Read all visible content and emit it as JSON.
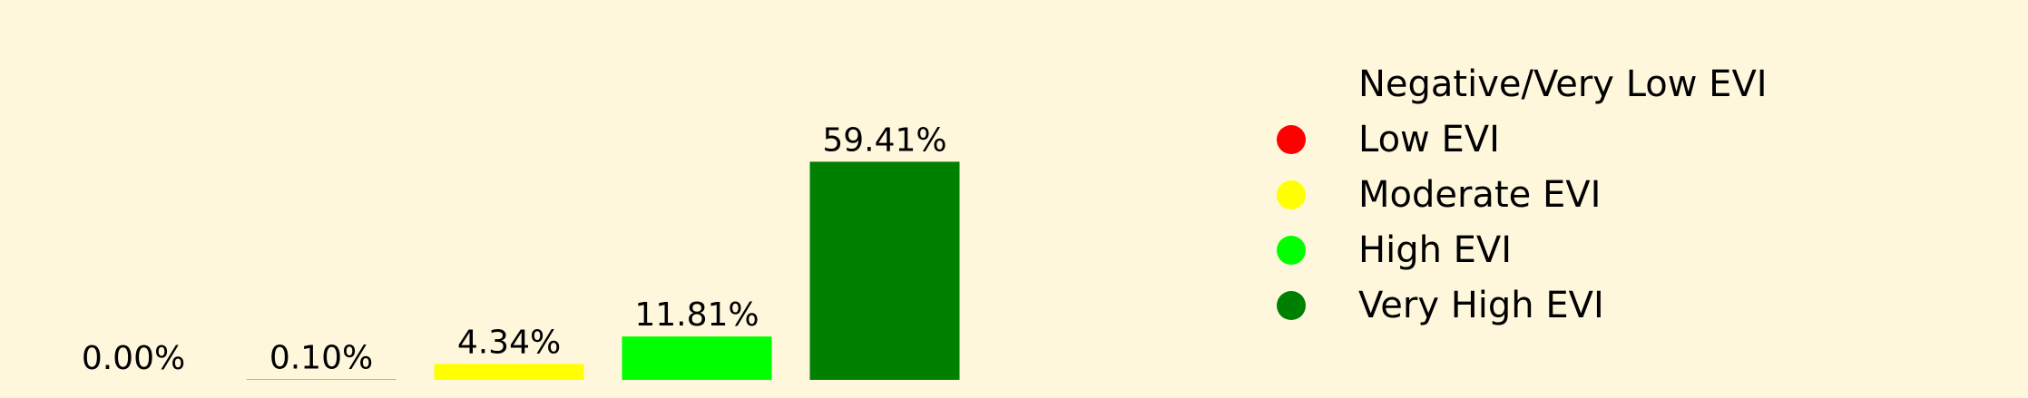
{
  "chart_data": {
    "type": "bar",
    "categories": [
      "Negative/Very Low EVI",
      "Low EVI",
      "Moderate EVI",
      "High EVI",
      "Very High EVI"
    ],
    "values": [
      0.0,
      0.1,
      4.34,
      11.81,
      59.41
    ],
    "data_labels": [
      "0.00%",
      "0.10%",
      "4.34%",
      "11.81%",
      "59.41%"
    ],
    "colors": [
      "#fef7dc",
      "#ff0000",
      "#ffff00",
      "#00ff00",
      "#008000"
    ],
    "title": "",
    "xlabel": "",
    "ylabel": "",
    "ylim": [
      0,
      70
    ],
    "grid": false,
    "legend": {
      "position": "right",
      "entries": [
        {
          "label": "Negative/Very Low EVI",
          "color": "#fef7dc"
        },
        {
          "label": "Low EVI",
          "color": "#ff0000"
        },
        {
          "label": "Moderate EVI",
          "color": "#ffff00"
        },
        {
          "label": "High EVI",
          "color": "#00ff00"
        },
        {
          "label": "Very High EVI",
          "color": "#008000"
        }
      ]
    }
  }
}
